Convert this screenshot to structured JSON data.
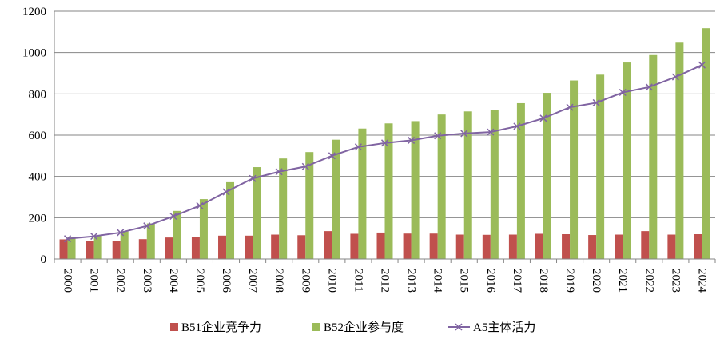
{
  "chart_data": {
    "type": "bar",
    "title": "",
    "xlabel": "",
    "ylabel": "",
    "ylim": [
      0,
      1200
    ],
    "yticks": [
      0,
      200,
      400,
      600,
      800,
      1000,
      1200
    ],
    "grid": "horizontal",
    "legend_position": "bottom",
    "categories": [
      "2000",
      "2001",
      "2002",
      "2003",
      "2004",
      "2005",
      "2006",
      "2007",
      "2008",
      "2009",
      "2010",
      "2011",
      "2012",
      "2013",
      "2014",
      "2015",
      "2016",
      "2017",
      "2018",
      "2019",
      "2020",
      "2021",
      "2022",
      "2023",
      "2024"
    ],
    "series": [
      {
        "name": "B51企业竞争力",
        "type": "bar",
        "color": "#C0504D",
        "values": [
          95,
          88,
          88,
          96,
          104,
          108,
          113,
          113,
          118,
          115,
          135,
          122,
          128,
          123,
          123,
          118,
          117,
          118,
          122,
          120,
          116,
          118,
          135,
          118,
          120
        ]
      },
      {
        "name": "B52企业参与度",
        "type": "bar",
        "color": "#9BBB59",
        "values": [
          105,
          112,
          133,
          172,
          233,
          290,
          372,
          445,
          487,
          518,
          578,
          632,
          657,
          668,
          700,
          715,
          722,
          755,
          805,
          865,
          893,
          952,
          988,
          1048,
          1118
        ]
      },
      {
        "name": "A5主体活力",
        "type": "line",
        "color": "#8064A2",
        "marker": "x",
        "values": [
          98,
          110,
          128,
          160,
          207,
          258,
          325,
          390,
          423,
          448,
          500,
          543,
          562,
          575,
          597,
          608,
          615,
          643,
          682,
          735,
          757,
          807,
          833,
          882,
          940
        ]
      }
    ]
  }
}
